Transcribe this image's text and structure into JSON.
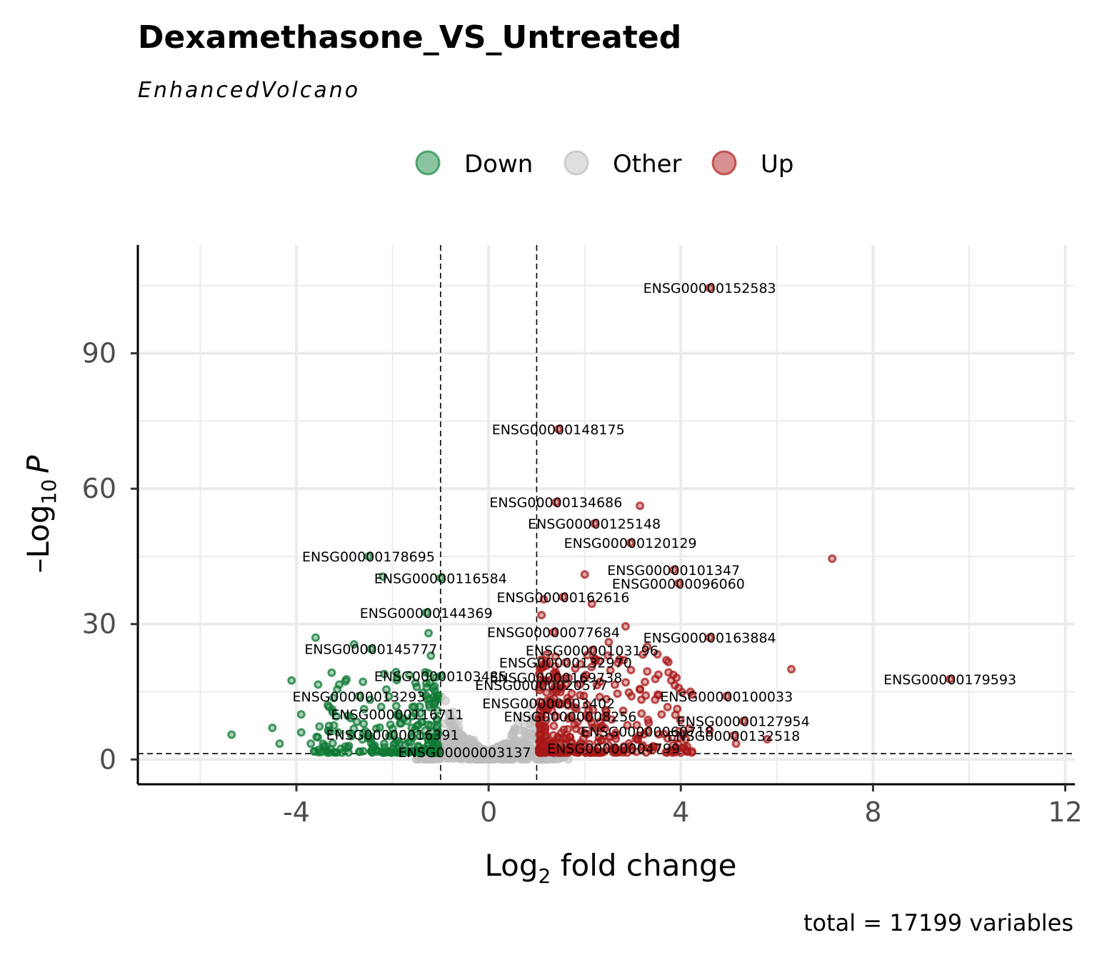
{
  "chart_data": {
    "type": "scatter",
    "title": "Dexamethasone_VS_Untreated",
    "subtitle": "EnhancedVolcano",
    "caption": "total = 17199 variables",
    "xlabel": "Log",
    "xlabel_sub": "2",
    "xlabel_rest": " fold change",
    "ylabel_prefix": "–Log",
    "ylabel_sub": "10",
    "ylabel_italic": "P",
    "xlim": [
      -7.3,
      12.2
    ],
    "ylim": [
      -5.5,
      114
    ],
    "x_ticks": [
      -4,
      0,
      4,
      8,
      12
    ],
    "x_tick_labels": [
      "-4",
      "0",
      "4",
      "8",
      "12"
    ],
    "y_ticks": [
      0,
      30,
      60,
      90
    ],
    "y_tick_labels": [
      "0",
      "30",
      "60",
      "90"
    ],
    "fc_cutoff": 1,
    "p_cutoff_log10": 1.3,
    "grid": true,
    "legend_position": "top",
    "legend": [
      {
        "name": "Down",
        "color": "#1a8a44"
      },
      {
        "name": "Other",
        "color": "#cccccc"
      },
      {
        "name": "Up",
        "color": "#b22222"
      }
    ],
    "colors": {
      "Down": "#0f7a35",
      "Other": "#bdbdbd",
      "Up": "#a81818"
    },
    "labeled_points": [
      {
        "label": "ENSG00000152583",
        "x": 4.6,
        "y": 104.5,
        "group": "Up"
      },
      {
        "label": "ENSG00000148175",
        "x": 1.45,
        "y": 73.2,
        "group": "Up"
      },
      {
        "label": "ENSG00000134686",
        "x": 1.4,
        "y": 57,
        "group": "Up"
      },
      {
        "label": "ENSG00000125148",
        "x": 2.2,
        "y": 52.3,
        "group": "Up"
      },
      {
        "label": "ENSG00000120129",
        "x": 2.95,
        "y": 48,
        "group": "Up"
      },
      {
        "label": "ENSG00000178695",
        "x": -2.5,
        "y": 45,
        "group": "Down"
      },
      {
        "label": "ENSG00000101347",
        "x": 3.85,
        "y": 42,
        "group": "Up"
      },
      {
        "label": "ENSG00000116584",
        "x": -1.0,
        "y": 40.2,
        "group": "Down"
      },
      {
        "label": "ENSG00000096060",
        "x": 3.95,
        "y": 39,
        "group": "Up"
      },
      {
        "label": "ENSG00000162616",
        "x": 1.55,
        "y": 36,
        "group": "Up"
      },
      {
        "label": "ENSG00000144369",
        "x": -1.3,
        "y": 32.5,
        "group": "Down"
      },
      {
        "label": "ENSG00000077684",
        "x": 1.35,
        "y": 28.2,
        "group": "Up"
      },
      {
        "label": "ENSG00000163884",
        "x": 4.6,
        "y": 27,
        "group": "Up"
      },
      {
        "label": "ENSG00000145777",
        "x": -2.45,
        "y": 24.5,
        "group": "Down"
      },
      {
        "label": "ENSG00000103196",
        "x": 2.15,
        "y": 24.2,
        "group": "Up"
      },
      {
        "label": "ENSG00000132970",
        "x": 1.6,
        "y": 21.5,
        "group": "Up"
      },
      {
        "label": "ENSG00000103485",
        "x": -1.0,
        "y": 18.5,
        "group": "Down"
      },
      {
        "label": "ENSG00000169738",
        "x": 1.4,
        "y": 18.2,
        "group": "Up"
      },
      {
        "label": "ENSG00000179593",
        "x": 9.6,
        "y": 17.8,
        "group": "Up"
      },
      {
        "label": "ENSG00000020577",
        "x": 1.1,
        "y": 16.5,
        "group": "Up"
      },
      {
        "label": "ENSG00000013293",
        "x": -2.7,
        "y": 14,
        "group": "Down"
      },
      {
        "label": "ENSG00000100033",
        "x": 4.95,
        "y": 14,
        "group": "Up"
      },
      {
        "label": "ENSG00000003402",
        "x": 1.25,
        "y": 12.5,
        "group": "Up"
      },
      {
        "label": "ENSG00000116711",
        "x": -1.9,
        "y": 10,
        "group": "Down"
      },
      {
        "label": "ENSG00000008256",
        "x": 1.7,
        "y": 9.5,
        "group": "Up"
      },
      {
        "label": "ENSG00000127954",
        "x": 5.3,
        "y": 8.5,
        "group": "Up"
      },
      {
        "label": "ENSG00000060718",
        "x": 3.3,
        "y": 6.2,
        "group": "Up"
      },
      {
        "label": "ENSG00000016391",
        "x": -2.0,
        "y": 5.5,
        "group": "Down"
      },
      {
        "label": "ENSG00000132518",
        "x": 5.1,
        "y": 5.3,
        "group": "Up"
      },
      {
        "label": "ENSG00000004799",
        "x": 2.6,
        "y": 2.5,
        "group": "Up"
      },
      {
        "label": "ENSG00000003137",
        "x": -0.5,
        "y": 1.6,
        "group": "Other"
      }
    ],
    "unlabeled_points": [
      {
        "x": 7.15,
        "y": 44.5,
        "group": "Up"
      },
      {
        "x": 3.15,
        "y": 56.2,
        "group": "Up"
      },
      {
        "x": 2.0,
        "y": 41,
        "group": "Up"
      },
      {
        "x": 2.15,
        "y": 34.5,
        "group": "Up"
      },
      {
        "x": 1.15,
        "y": 35.5,
        "group": "Up"
      },
      {
        "x": 1.1,
        "y": 32,
        "group": "Up"
      },
      {
        "x": 6.3,
        "y": 20,
        "group": "Up"
      },
      {
        "x": 3.3,
        "y": 25,
        "group": "Up"
      },
      {
        "x": 3.3,
        "y": 19.5,
        "group": "Up"
      },
      {
        "x": 3.8,
        "y": 17.5,
        "group": "Up"
      },
      {
        "x": 3.15,
        "y": 15.5,
        "group": "Up"
      },
      {
        "x": 3.6,
        "y": 10,
        "group": "Up"
      },
      {
        "x": 4.2,
        "y": 15,
        "group": "Up"
      },
      {
        "x": 4.6,
        "y": 6.5,
        "group": "Up"
      },
      {
        "x": 5.15,
        "y": 3.5,
        "group": "Up"
      },
      {
        "x": 5.8,
        "y": 4.5,
        "group": "Up"
      },
      {
        "x": 2.85,
        "y": 29.5,
        "group": "Up"
      },
      {
        "x": 2.5,
        "y": 26,
        "group": "Up"
      },
      {
        "x": 3.7,
        "y": 22,
        "group": "Up"
      },
      {
        "x": -2.2,
        "y": 40.5,
        "group": "Down"
      },
      {
        "x": -3.6,
        "y": 27,
        "group": "Down"
      },
      {
        "x": -2.8,
        "y": 25.5,
        "group": "Down"
      },
      {
        "x": -4.1,
        "y": 17.5,
        "group": "Down"
      },
      {
        "x": -3.9,
        "y": 10,
        "group": "Down"
      },
      {
        "x": -4.5,
        "y": 7,
        "group": "Down"
      },
      {
        "x": -5.35,
        "y": 5.5,
        "group": "Down"
      },
      {
        "x": -4.35,
        "y": 3.5,
        "group": "Down"
      },
      {
        "x": -3.4,
        "y": 3,
        "group": "Down"
      },
      {
        "x": -1.25,
        "y": 28,
        "group": "Down"
      },
      {
        "x": -1.2,
        "y": 23,
        "group": "Down"
      },
      {
        "x": -3.9,
        "y": 6,
        "group": "Down"
      },
      {
        "x": -3.7,
        "y": 3.5,
        "group": "Down"
      }
    ],
    "cloud_seed": 12345,
    "cloud_counts": {
      "Down": 220,
      "Other": 700,
      "Up": 340
    }
  }
}
